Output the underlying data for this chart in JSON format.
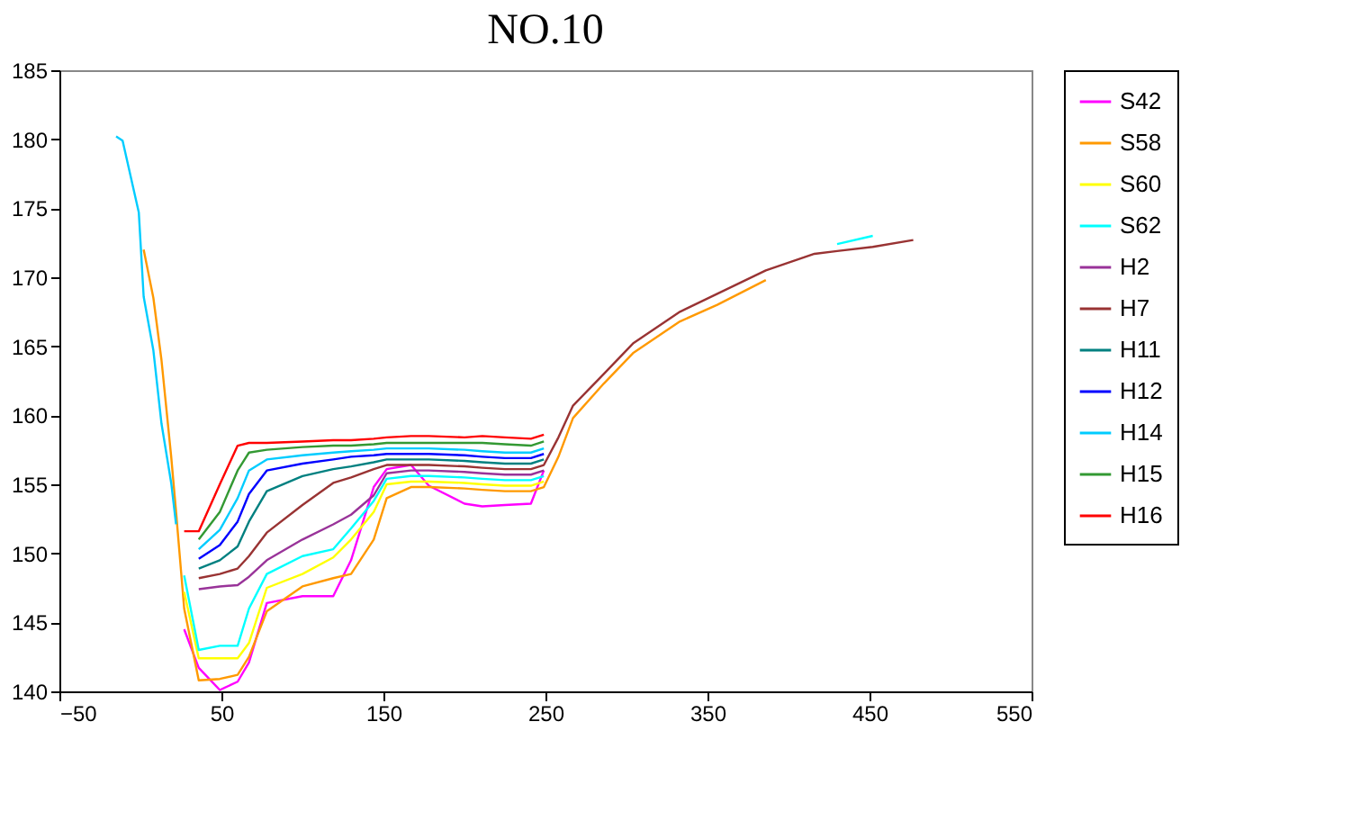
{
  "chart_data": {
    "type": "line",
    "title": "NO.10",
    "x": [
      -15,
      -11,
      -1,
      2,
      8,
      13,
      19,
      22,
      27,
      36,
      49,
      60,
      67,
      78,
      100,
      119,
      130,
      144,
      152,
      167,
      178,
      200,
      211,
      225,
      241,
      249,
      258,
      267,
      286,
      304,
      333,
      356,
      386,
      416,
      430,
      452,
      477
    ],
    "series": [
      {
        "name": "S42",
        "color": "#ff00ff",
        "values": [
          null,
          null,
          null,
          null,
          null,
          null,
          null,
          null,
          144.5,
          141.7,
          140.1,
          140.7,
          142.1,
          146.4,
          146.9,
          146.9,
          149.5,
          154.8,
          156.1,
          156.4,
          154.9,
          153.6,
          153.4,
          153.5,
          153.6,
          156.0,
          null,
          null,
          null,
          null,
          null,
          null,
          null,
          null,
          null,
          null,
          null
        ]
      },
      {
        "name": "S58",
        "color": "#ff9900",
        "values": [
          null,
          null,
          null,
          172,
          168.5,
          164,
          157,
          153,
          146,
          140.8,
          140.9,
          141.2,
          142.5,
          145.8,
          147.6,
          148.2,
          148.5,
          151,
          154,
          154.8,
          154.8,
          154.7,
          154.6,
          154.5,
          154.5,
          154.8,
          157,
          159.8,
          162.3,
          164.5,
          166.8,
          168.0,
          169.8,
          null,
          null,
          null,
          null
        ]
      },
      {
        "name": "S60",
        "color": "#ffff00",
        "values": [
          null,
          null,
          null,
          null,
          null,
          null,
          null,
          null,
          147.2,
          142.4,
          142.4,
          142.4,
          143.5,
          147.5,
          148.5,
          149.7,
          151,
          153,
          155,
          155.2,
          155.2,
          155.1,
          155,
          154.9,
          154.9,
          155.2,
          null,
          null,
          null,
          null,
          null,
          null,
          null,
          null,
          null,
          null,
          null
        ]
      },
      {
        "name": "S62",
        "color": "#00ffff",
        "values": [
          null,
          null,
          null,
          null,
          null,
          null,
          null,
          null,
          148.4,
          143,
          143.3,
          143.3,
          146,
          148.5,
          149.8,
          150.3,
          151.8,
          153.8,
          155.4,
          155.6,
          155.6,
          155.5,
          155.4,
          155.3,
          155.3,
          155.6,
          null,
          null,
          null,
          null,
          null,
          null,
          null,
          null,
          172.4,
          173,
          null
        ]
      },
      {
        "name": "H2",
        "color": "#993399",
        "values": [
          null,
          null,
          null,
          null,
          null,
          null,
          null,
          null,
          null,
          147.4,
          147.6,
          147.7,
          148.3,
          149.5,
          151,
          152.1,
          152.8,
          154.2,
          155.8,
          156.0,
          156.0,
          155.9,
          155.8,
          155.7,
          155.7,
          156.0,
          null,
          null,
          null,
          null,
          null,
          null,
          null,
          null,
          null,
          null,
          null
        ]
      },
      {
        "name": "H7",
        "color": "#993333",
        "values": [
          null,
          null,
          null,
          null,
          null,
          null,
          null,
          null,
          null,
          148.2,
          148.5,
          148.9,
          149.8,
          151.5,
          153.5,
          155.1,
          155.5,
          156.1,
          156.4,
          156.4,
          156.4,
          156.3,
          156.2,
          156.1,
          156.1,
          156.4,
          158.4,
          160.7,
          163,
          165.2,
          167.5,
          168.8,
          170.5,
          171.7,
          171.9,
          172.2,
          172.7
        ]
      },
      {
        "name": "H11",
        "color": "#008080",
        "values": [
          null,
          null,
          null,
          null,
          null,
          null,
          null,
          null,
          null,
          148.9,
          149.5,
          150.5,
          152.3,
          154.5,
          155.6,
          156.1,
          156.3,
          156.6,
          156.8,
          156.8,
          156.8,
          156.7,
          156.6,
          156.5,
          156.5,
          156.8,
          null,
          null,
          null,
          null,
          null,
          null,
          null,
          null,
          null,
          null,
          null
        ]
      },
      {
        "name": "H12",
        "color": "#0000ff",
        "values": [
          null,
          null,
          null,
          null,
          null,
          null,
          null,
          null,
          null,
          149.6,
          150.6,
          152.3,
          154.3,
          156.0,
          156.5,
          156.8,
          157.0,
          157.1,
          157.2,
          157.2,
          157.2,
          157.1,
          157.0,
          156.9,
          156.9,
          157.2,
          null,
          null,
          null,
          null,
          null,
          null,
          null,
          null,
          null,
          null,
          null
        ]
      },
      {
        "name": "H14",
        "color": "#00ccff",
        "values": [
          180.2,
          179.9,
          174.7,
          168.6,
          164.7,
          159.4,
          155.1,
          152.1,
          null,
          150.3,
          151.7,
          154,
          156,
          156.8,
          157.1,
          157.3,
          157.4,
          157.5,
          157.6,
          157.6,
          157.6,
          157.5,
          157.4,
          157.3,
          157.3,
          157.6,
          null,
          null,
          null,
          null,
          null,
          null,
          null,
          null,
          null,
          null,
          null
        ]
      },
      {
        "name": "H15",
        "color": "#339933",
        "values": [
          null,
          null,
          null,
          null,
          null,
          null,
          null,
          null,
          null,
          151.0,
          153.0,
          156.0,
          157.3,
          157.5,
          157.7,
          157.8,
          157.8,
          157.9,
          158.0,
          158.0,
          158.0,
          158.0,
          158.0,
          157.9,
          157.8,
          158.1,
          null,
          null,
          null,
          null,
          null,
          null,
          null,
          null,
          null,
          null,
          null
        ]
      },
      {
        "name": "H16",
        "color": "#ff0000",
        "values": [
          null,
          null,
          null,
          null,
          null,
          null,
          null,
          null,
          151.6,
          151.6,
          155,
          157.8,
          158,
          158.0,
          158.1,
          158.2,
          158.2,
          158.3,
          158.4,
          158.5,
          158.5,
          158.4,
          158.5,
          158.4,
          158.3,
          158.6,
          null,
          null,
          null,
          null,
          null,
          null,
          null,
          null,
          null,
          null,
          null
        ]
      }
    ],
    "xlim": [
      -50,
      550
    ],
    "xticks": [
      -50,
      50,
      150,
      250,
      350,
      450,
      550
    ],
    "ylim": [
      140,
      185
    ],
    "yticks": [
      140,
      145,
      150,
      155,
      160,
      165,
      170,
      175,
      180,
      185
    ],
    "grid": false,
    "legend": "right",
    "marker": "none",
    "line_style": "solid"
  }
}
